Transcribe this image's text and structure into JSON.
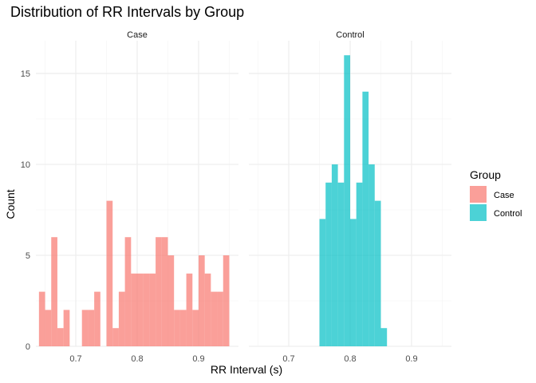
{
  "chart_data": {
    "type": "bar",
    "title": "Distribution of RR Intervals by Group",
    "xlabel": "RR Interval (s)",
    "ylabel": "Count",
    "xlim": [
      0.635,
      0.965
    ],
    "ylim": [
      0,
      16.8
    ],
    "x_ticks": [
      0.7,
      0.8,
      0.9
    ],
    "y_ticks": [
      0,
      5,
      10,
      15
    ],
    "x_tick_labels": [
      "0.7",
      "0.8",
      "0.9"
    ],
    "y_tick_labels": [
      "0",
      "5",
      "10",
      "15"
    ],
    "bin_width": 0.01,
    "legend": {
      "title": "Group",
      "position": "right"
    },
    "grid": true,
    "series": [
      {
        "name": "Case",
        "color": "#F8766D",
        "bins": [
          {
            "x": 0.645,
            "count": 3
          },
          {
            "x": 0.655,
            "count": 2
          },
          {
            "x": 0.665,
            "count": 6
          },
          {
            "x": 0.675,
            "count": 1
          },
          {
            "x": 0.685,
            "count": 2
          },
          {
            "x": 0.695,
            "count": 0
          },
          {
            "x": 0.705,
            "count": 0
          },
          {
            "x": 0.715,
            "count": 2
          },
          {
            "x": 0.725,
            "count": 2
          },
          {
            "x": 0.735,
            "count": 3
          },
          {
            "x": 0.745,
            "count": 0
          },
          {
            "x": 0.755,
            "count": 8
          },
          {
            "x": 0.765,
            "count": 1
          },
          {
            "x": 0.775,
            "count": 3
          },
          {
            "x": 0.785,
            "count": 6
          },
          {
            "x": 0.795,
            "count": 4
          },
          {
            "x": 0.805,
            "count": 4
          },
          {
            "x": 0.815,
            "count": 4
          },
          {
            "x": 0.825,
            "count": 4
          },
          {
            "x": 0.835,
            "count": 6
          },
          {
            "x": 0.845,
            "count": 6
          },
          {
            "x": 0.855,
            "count": 5
          },
          {
            "x": 0.865,
            "count": 2
          },
          {
            "x": 0.875,
            "count": 2
          },
          {
            "x": 0.885,
            "count": 4
          },
          {
            "x": 0.895,
            "count": 2
          },
          {
            "x": 0.905,
            "count": 5
          },
          {
            "x": 0.915,
            "count": 4
          },
          {
            "x": 0.925,
            "count": 3
          },
          {
            "x": 0.935,
            "count": 3
          },
          {
            "x": 0.945,
            "count": 5
          }
        ]
      },
      {
        "name": "Control",
        "color": "#00BFC4",
        "bins": [
          {
            "x": 0.755,
            "count": 7
          },
          {
            "x": 0.765,
            "count": 9
          },
          {
            "x": 0.775,
            "count": 10
          },
          {
            "x": 0.785,
            "count": 9
          },
          {
            "x": 0.795,
            "count": 16
          },
          {
            "x": 0.805,
            "count": 7
          },
          {
            "x": 0.815,
            "count": 9
          },
          {
            "x": 0.825,
            "count": 14
          },
          {
            "x": 0.835,
            "count": 10
          },
          {
            "x": 0.845,
            "count": 8
          },
          {
            "x": 0.855,
            "count": 1
          }
        ]
      }
    ]
  }
}
